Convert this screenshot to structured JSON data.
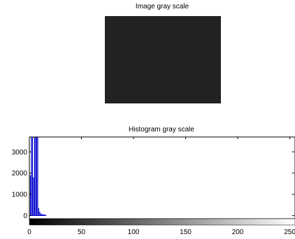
{
  "image_panel": {
    "title": "Image gray scale",
    "fill_color": "#222222"
  },
  "chart_data": {
    "type": "bar",
    "title": "Histogram gray scale",
    "xlabel": "",
    "ylabel": "",
    "xlim": [
      0,
      255
    ],
    "ylim": [
      -150,
      3700
    ],
    "x_ticks": [
      0,
      50,
      100,
      150,
      200,
      250
    ],
    "y_ticks": [
      0,
      1000,
      2000,
      3000
    ],
    "grid": false,
    "bar_color": "#0000cc",
    "colorbar": {
      "from": "#000000",
      "to": "#ffffff",
      "range": [
        0,
        255
      ]
    },
    "x": [
      1,
      2,
      3,
      4,
      5,
      6,
      7,
      8,
      9,
      10,
      11,
      12,
      13,
      14,
      15,
      16
    ],
    "values": [
      1900,
      3800,
      3800,
      1800,
      3800,
      3800,
      3800,
      3800,
      350,
      180,
      90,
      70,
      60,
      50,
      40,
      30
    ]
  }
}
